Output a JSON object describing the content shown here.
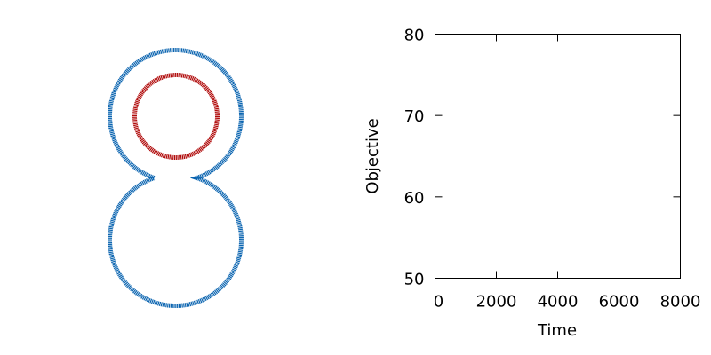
{
  "colors": {
    "outer_shape": "#0a64b0",
    "inner_circle": "#b00a0a",
    "axis": "#000000",
    "background": "#ffffff"
  },
  "chart_data": [
    {
      "type": "diagram",
      "description_elements": [
        "outer-keyhole-outline",
        "inner-circle-outline"
      ],
      "title": ""
    },
    {
      "type": "line",
      "title": "",
      "xlabel": "Time",
      "ylabel": "Objective",
      "xlim": [
        0,
        8000
      ],
      "ylim": [
        50,
        80
      ],
      "xticks": [
        "0",
        "2000",
        "4000",
        "6000",
        "8000"
      ],
      "yticks": [
        "50",
        "60",
        "70",
        "80"
      ],
      "grid": false,
      "series": []
    }
  ]
}
